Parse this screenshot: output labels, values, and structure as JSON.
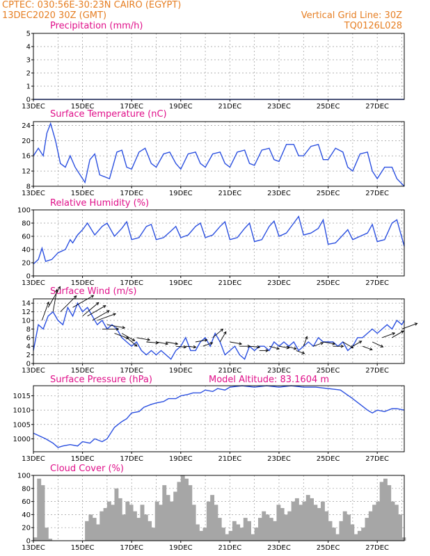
{
  "header": {
    "line1_left": "CPTEC:  030:56E-30:23N  CAIRO (EGYPT)",
    "line2_left": "13DEC2020 30Z (GMT)",
    "line1_right": "Vertical Grid Line: 30Z",
    "line2_right": "TQ0126L028"
  },
  "x_ticks": [
    "13DEC",
    "15DEC",
    "17DEC",
    "19DEC",
    "21DEC",
    "23DEC",
    "25DEC",
    "27DEC"
  ],
  "chart_data": [
    {
      "type": "line",
      "title": "Precipitation (mm/h)",
      "ylim": [
        0,
        5
      ],
      "yticks": [
        0,
        1,
        2,
        3,
        4,
        5
      ],
      "x_days": [
        0,
        15.1
      ],
      "y": [
        0,
        0
      ]
    },
    {
      "type": "line",
      "title": "Surface Temperature (nC)",
      "ylim": [
        8,
        25
      ],
      "yticks": [
        8,
        12,
        16,
        20,
        24
      ],
      "x_days": [
        0,
        0.2,
        0.4,
        0.55,
        0.7,
        0.9,
        1.1,
        1.3,
        1.5,
        1.7,
        1.9,
        2.1,
        2.3,
        2.5,
        2.7,
        3.1,
        3.4,
        3.6,
        3.8,
        4.0,
        4.3,
        4.55,
        4.8,
        5.0,
        5.3,
        5.55,
        5.8,
        6.0,
        6.3,
        6.6,
        6.8,
        7.0,
        7.3,
        7.6,
        7.8,
        8.0,
        8.3,
        8.6,
        8.8,
        9.0,
        9.3,
        9.6,
        9.8,
        10.0,
        10.3,
        10.6,
        10.8,
        11.0,
        11.3,
        11.6,
        11.8,
        12.0,
        12.3,
        12.6,
        12.8,
        13.0,
        13.3,
        13.6,
        13.8,
        14.0,
        14.3,
        14.6,
        14.8,
        15.1
      ],
      "y": [
        16,
        18,
        16,
        22,
        24.5,
        20,
        14,
        13,
        16,
        13,
        11,
        9,
        15,
        16.5,
        11,
        10,
        17,
        17.5,
        13,
        12.5,
        17,
        18,
        14,
        13,
        16.5,
        17,
        14,
        12.5,
        16.5,
        17,
        14,
        13,
        16.5,
        17,
        14,
        13,
        17,
        17.5,
        14,
        13.5,
        17.5,
        18,
        15,
        14.5,
        19,
        19,
        16,
        16,
        18.5,
        19,
        15,
        15,
        18,
        17,
        13,
        12,
        16.5,
        17,
        12,
        10,
        13,
        13,
        10,
        8
      ]
    },
    {
      "type": "line",
      "title": "Relative Humidity (%)",
      "ylim": [
        0,
        100
      ],
      "yticks": [
        0,
        20,
        40,
        60,
        80,
        100
      ],
      "x_days": [
        0,
        0.2,
        0.35,
        0.5,
        0.75,
        1.0,
        1.3,
        1.5,
        1.6,
        1.8,
        2.0,
        2.2,
        2.5,
        2.8,
        3.0,
        3.3,
        3.6,
        3.8,
        4.0,
        4.3,
        4.6,
        4.8,
        5.0,
        5.3,
        5.6,
        5.8,
        6.0,
        6.3,
        6.6,
        6.8,
        7.0,
        7.3,
        7.6,
        7.8,
        8.0,
        8.3,
        8.6,
        8.8,
        9.0,
        9.3,
        9.6,
        9.8,
        10.0,
        10.3,
        10.6,
        10.8,
        11.0,
        11.3,
        11.6,
        11.8,
        12.0,
        12.3,
        12.6,
        12.8,
        13.0,
        13.3,
        13.6,
        13.8,
        14.0,
        14.3,
        14.6,
        14.8,
        15.1
      ],
      "y": [
        18,
        25,
        42,
        22,
        25,
        35,
        40,
        55,
        50,
        62,
        70,
        80,
        62,
        75,
        80,
        60,
        72,
        82,
        55,
        58,
        75,
        78,
        55,
        58,
        68,
        75,
        58,
        62,
        75,
        80,
        58,
        62,
        75,
        82,
        55,
        58,
        72,
        80,
        52,
        55,
        75,
        83,
        60,
        65,
        80,
        90,
        62,
        65,
        72,
        85,
        48,
        50,
        62,
        70,
        55,
        60,
        65,
        78,
        52,
        55,
        80,
        85,
        45
      ]
    },
    {
      "type": "line",
      "title": "Surface Wind (m/s)",
      "ylim": [
        0,
        15
      ],
      "yticks": [
        0,
        2,
        4,
        6,
        8,
        10,
        12,
        14
      ],
      "x_days": [
        0,
        0.2,
        0.4,
        0.6,
        0.8,
        1.0,
        1.2,
        1.4,
        1.6,
        1.8,
        2.0,
        2.2,
        2.4,
        2.6,
        2.8,
        3.0,
        3.2,
        3.4,
        3.6,
        3.8,
        4.0,
        4.2,
        4.4,
        4.6,
        4.8,
        5.0,
        5.2,
        5.4,
        5.6,
        5.8,
        6.0,
        6.2,
        6.4,
        6.6,
        6.8,
        7.0,
        7.2,
        7.4,
        7.6,
        7.8,
        8.0,
        8.2,
        8.4,
        8.6,
        8.8,
        9.0,
        9.2,
        9.4,
        9.6,
        9.8,
        10.0,
        10.2,
        10.4,
        10.6,
        10.8,
        11.0,
        11.2,
        11.4,
        11.6,
        11.8,
        12.0,
        12.2,
        12.4,
        12.6,
        12.8,
        13.0,
        13.2,
        13.4,
        13.6,
        13.8,
        14.0,
        14.2,
        14.4,
        14.6,
        14.8,
        15.0,
        15.1
      ],
      "y": [
        3,
        9,
        8,
        11,
        12,
        10,
        9,
        13,
        11,
        14,
        12,
        13,
        11,
        9,
        10,
        8,
        9,
        8,
        6,
        5,
        4,
        5,
        3,
        2,
        3,
        2,
        3,
        2,
        1,
        3,
        4,
        6,
        3,
        3,
        5,
        6,
        4,
        7,
        5,
        2,
        3,
        4,
        2,
        1,
        4,
        3,
        4,
        4,
        3,
        5,
        4,
        5,
        4,
        5,
        3,
        4,
        5,
        4,
        6,
        5,
        5,
        5,
        4,
        5,
        3,
        4,
        6,
        6,
        7,
        8,
        7,
        8,
        9,
        8,
        10,
        9,
        10
      ]
    },
    {
      "type": "line",
      "title": "Surface Pressure (hPa)",
      "annotation": "Model Altitude: 83.1604 m",
      "ylim": [
        995.5,
        1018.5
      ],
      "yticks": [
        1000,
        1005,
        1010,
        1015
      ],
      "x_days": [
        0,
        0.5,
        0.8,
        1.0,
        1.2,
        1.5,
        1.8,
        2.0,
        2.3,
        2.5,
        2.8,
        3.0,
        3.3,
        3.6,
        3.8,
        4.0,
        4.3,
        4.5,
        4.8,
        5.0,
        5.3,
        5.5,
        5.8,
        6.0,
        6.3,
        6.5,
        6.8,
        7.0,
        7.3,
        7.5,
        7.8,
        8.0,
        8.5,
        9.0,
        9.5,
        10.0,
        10.5,
        11.0,
        11.5,
        12.0,
        12.5,
        13.0,
        13.3,
        13.6,
        13.8,
        14.0,
        14.3,
        14.6,
        14.8,
        15.1
      ],
      "y": [
        1002,
        1000,
        998.5,
        997,
        997.5,
        998,
        997.5,
        999,
        998.5,
        1000,
        999,
        1000,
        1004,
        1006,
        1007,
        1009,
        1009.5,
        1011,
        1012,
        1012.5,
        1013,
        1014,
        1014,
        1015,
        1015.5,
        1016,
        1016,
        1017,
        1016.5,
        1017.5,
        1017,
        1018,
        1018.5,
        1018,
        1018.5,
        1018,
        1018.5,
        1018,
        1018,
        1017.5,
        1017,
        1014,
        1012,
        1010,
        1009,
        1010,
        1009.5,
        1010.5,
        1010.5,
        1010
      ]
    },
    {
      "type": "bar",
      "title": "Cloud Cover (%)",
      "ylim": [
        0,
        100
      ],
      "yticks": [
        0,
        20,
        40,
        60,
        80,
        100
      ],
      "x_days": [
        0.0,
        0.15,
        0.3,
        0.45,
        0.6,
        0.75,
        0.9,
        1.05,
        1.2,
        1.35,
        1.5,
        1.65,
        1.8,
        1.95,
        2.1,
        2.25,
        2.4,
        2.55,
        2.7,
        2.85,
        3.0,
        3.15,
        3.3,
        3.45,
        3.6,
        3.75,
        3.9,
        4.05,
        4.2,
        4.35,
        4.5,
        4.65,
        4.8,
        4.95,
        5.1,
        5.25,
        5.4,
        5.55,
        5.7,
        5.85,
        6.0,
        6.15,
        6.3,
        6.45,
        6.6,
        6.75,
        6.9,
        7.05,
        7.2,
        7.35,
        7.5,
        7.65,
        7.8,
        7.95,
        8.1,
        8.25,
        8.4,
        8.55,
        8.7,
        8.85,
        9.0,
        9.15,
        9.3,
        9.45,
        9.6,
        9.75,
        9.9,
        10.05,
        10.2,
        10.35,
        10.5,
        10.65,
        10.8,
        10.95,
        11.1,
        11.25,
        11.4,
        11.55,
        11.7,
        11.85,
        12.0,
        12.15,
        12.3,
        12.45,
        12.6,
        12.75,
        12.9,
        13.05,
        13.2,
        13.35,
        13.5,
        13.65,
        13.8,
        13.95,
        14.1,
        14.25,
        14.4,
        14.55,
        14.7,
        14.85,
        15.0
      ],
      "y": [
        5,
        95,
        85,
        20,
        3,
        0,
        0,
        0,
        0,
        0,
        0,
        0,
        0,
        0,
        30,
        40,
        35,
        25,
        45,
        50,
        60,
        55,
        80,
        65,
        40,
        60,
        55,
        45,
        35,
        55,
        40,
        30,
        20,
        60,
        55,
        85,
        70,
        60,
        75,
        90,
        100,
        95,
        85,
        55,
        25,
        15,
        20,
        60,
        70,
        55,
        35,
        20,
        10,
        15,
        30,
        25,
        20,
        35,
        30,
        10,
        20,
        35,
        45,
        40,
        35,
        30,
        55,
        50,
        40,
        45,
        60,
        65,
        55,
        60,
        70,
        65,
        55,
        50,
        60,
        45,
        30,
        20,
        10,
        30,
        45,
        40,
        25,
        10,
        15,
        20,
        35,
        45,
        55,
        60,
        90,
        95,
        85,
        60,
        55,
        40,
        5
      ]
    }
  ],
  "wind_arrows": {
    "x_days": [
      0.35,
      0.6,
      0.8,
      1.1,
      1.6,
      2.0,
      2.2,
      2.4,
      2.6,
      2.8,
      3.0,
      3.3,
      3.6,
      3.8,
      4.2,
      4.6,
      5.0,
      5.4,
      5.8,
      6.2,
      6.6,
      6.9,
      7.3,
      7.6,
      8.0,
      8.4,
      8.8,
      9.2,
      9.6,
      10.0,
      10.3,
      10.7,
      11.0,
      11.4,
      11.8,
      12.2,
      12.6,
      13.0,
      13.4,
      13.8,
      14.2,
      14.6,
      15.0
    ],
    "speed": [
      10,
      13,
      12,
      12,
      13,
      11,
      11,
      10,
      10,
      8,
      9,
      7,
      7,
      6,
      6,
      5,
      5,
      5,
      4,
      4,
      5,
      4,
      6,
      5,
      5,
      4,
      4,
      3,
      4,
      4,
      4,
      3,
      4,
      4,
      5,
      4,
      5,
      4,
      4,
      5,
      6,
      6,
      8
    ],
    "dir_deg": [
      70,
      60,
      80,
      45,
      30,
      40,
      30,
      30,
      20,
      0,
      -10,
      -20,
      -30,
      -40,
      -10,
      -5,
      -10,
      -10,
      -5,
      -5,
      10,
      20,
      40,
      60,
      -10,
      0,
      -5,
      0,
      -15,
      -10,
      -15,
      -20,
      70,
      20,
      -10,
      0,
      -30,
      30,
      -20,
      -25,
      20,
      30,
      20
    ]
  }
}
